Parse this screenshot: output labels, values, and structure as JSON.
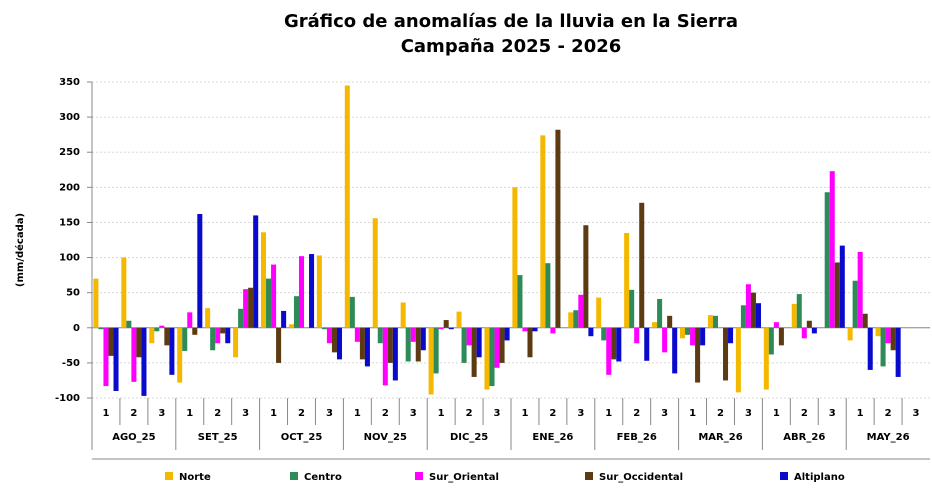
{
  "chart_data": {
    "type": "bar",
    "title": "Gráfico de anomalías de la lluvia en la Sierra",
    "subtitle": "Campaña 2025 - 2026",
    "y_label": "(mm/década)",
    "categories": [
      "1",
      "2",
      "3",
      "1",
      "2",
      "3",
      "1",
      "2",
      "3",
      "1",
      "2",
      "3",
      "1",
      "2",
      "3",
      "1",
      "2",
      "3",
      "1",
      "2",
      "3",
      "1",
      "2",
      "3",
      "1",
      "2",
      "3",
      "1",
      "2",
      "3"
    ],
    "groups": [
      "AGO_25",
      "SET_25",
      "OCT_25",
      "NOV_25",
      "DIC_25",
      "ENE_26",
      "FEB_26",
      "MAR_26",
      "ABR_26",
      "MAY_26"
    ],
    "series": [
      {
        "name": "Norte",
        "color": "#f5b800",
        "values": [
          70,
          100,
          -22,
          -78,
          28,
          -42,
          136,
          5,
          103,
          345,
          156,
          36,
          -95,
          23,
          -88,
          200,
          274,
          22,
          43,
          135,
          8,
          -15,
          18,
          -92,
          -88,
          34,
          0,
          -18,
          -12,
          null
        ]
      },
      {
        "name": "Centro",
        "color": "#2e8b57",
        "values": [
          -2,
          10,
          -5,
          -33,
          -32,
          27,
          70,
          45,
          -2,
          44,
          -22,
          -48,
          -65,
          -50,
          -83,
          75,
          92,
          25,
          -18,
          54,
          41,
          -10,
          17,
          32,
          -38,
          48,
          193,
          67,
          -55,
          null
        ]
      },
      {
        "name": "Sur_Oriental",
        "color": "#ff00ff",
        "values": [
          -83,
          -77,
          3,
          22,
          -22,
          55,
          90,
          102,
          -22,
          -20,
          -82,
          -20,
          -2,
          -25,
          -57,
          -5,
          -8,
          47,
          -67,
          -22,
          -35,
          -25,
          0,
          62,
          8,
          -15,
          223,
          108,
          -22,
          null
        ]
      },
      {
        "name": "Sur_Occidental",
        "color": "#5c3a12",
        "values": [
          -40,
          -42,
          -25,
          -10,
          -8,
          57,
          -50,
          0,
          -35,
          -45,
          -50,
          -48,
          11,
          -70,
          -50,
          -42,
          282,
          146,
          -45,
          178,
          17,
          -78,
          -75,
          50,
          -25,
          10,
          93,
          20,
          -32,
          null
        ]
      },
      {
        "name": "Altiplano",
        "color": "#0a0acc",
        "values": [
          -90,
          -97,
          -67,
          162,
          -22,
          160,
          24,
          105,
          -45,
          -55,
          -75,
          -32,
          -2,
          -42,
          -18,
          -5,
          0,
          -12,
          -48,
          -47,
          -65,
          -25,
          -22,
          35,
          0,
          -8,
          117,
          -60,
          -70,
          null
        ]
      }
    ],
    "ylim": [
      -100,
      350
    ],
    "yticks": [
      -100,
      -50,
      0,
      50,
      100,
      150,
      200,
      250,
      300,
      350
    ],
    "grid": true
  }
}
